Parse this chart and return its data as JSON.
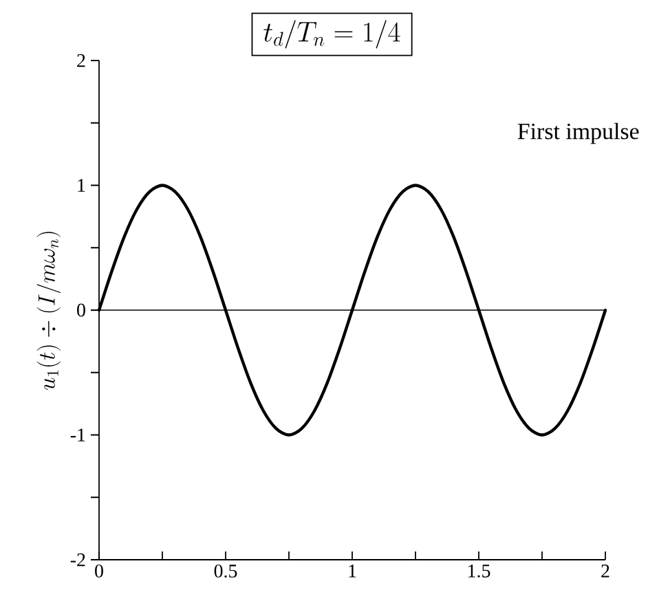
{
  "chart_data": {
    "type": "line",
    "title": "t_d/T_n = 1/4",
    "ylabel": "u_1(t) \\div (I / m\\omega_n)",
    "annotations": [
      "First impulse"
    ],
    "x": [
      0,
      0.05,
      0.1,
      0.15,
      0.2,
      0.25,
      0.3,
      0.35,
      0.4,
      0.45,
      0.5,
      0.55,
      0.6,
      0.65,
      0.7,
      0.75,
      0.8,
      0.85,
      0.9,
      0.95,
      1,
      1.05,
      1.1,
      1.15,
      1.2,
      1.25,
      1.3,
      1.35,
      1.4,
      1.45,
      1.5,
      1.55,
      1.6,
      1.65,
      1.7,
      1.75,
      1.8,
      1.85,
      1.9,
      1.95,
      2
    ],
    "values": [
      0,
      0.31,
      0.59,
      0.81,
      0.95,
      1,
      0.95,
      0.81,
      0.59,
      0.31,
      0,
      -0.31,
      -0.59,
      -0.81,
      -0.95,
      -1,
      -0.95,
      -0.81,
      -0.59,
      -0.31,
      0,
      0.31,
      0.59,
      0.81,
      0.95,
      1,
      0.95,
      0.81,
      0.59,
      0.31,
      0,
      -0.31,
      -0.59,
      -0.81,
      -0.95,
      -1,
      -0.95,
      -0.81,
      -0.59,
      -0.31,
      0
    ],
    "color": "#000000",
    "line_style": "solid",
    "xlim": [
      0,
      2
    ],
    "ylim": [
      -2,
      2
    ],
    "xticks": [
      0,
      {
        "value": 0.25,
        "label": null
      },
      0.5,
      {
        "value": 0.75,
        "label": null
      },
      1,
      {
        "value": 1.25,
        "label": null
      },
      1.5,
      {
        "value": 1.75,
        "label": null
      },
      2
    ],
    "yticks": [
      -2,
      {
        "value": -1.5,
        "label": null
      },
      -1,
      {
        "value": -0.5,
        "label": null
      },
      0,
      {
        "value": 0.5,
        "label": null
      },
      1,
      {
        "value": 1.5,
        "label": null
      },
      2
    ],
    "ref_lines": [
      {
        "axis": "y",
        "value": 0,
        "color": "#000000"
      }
    ]
  }
}
